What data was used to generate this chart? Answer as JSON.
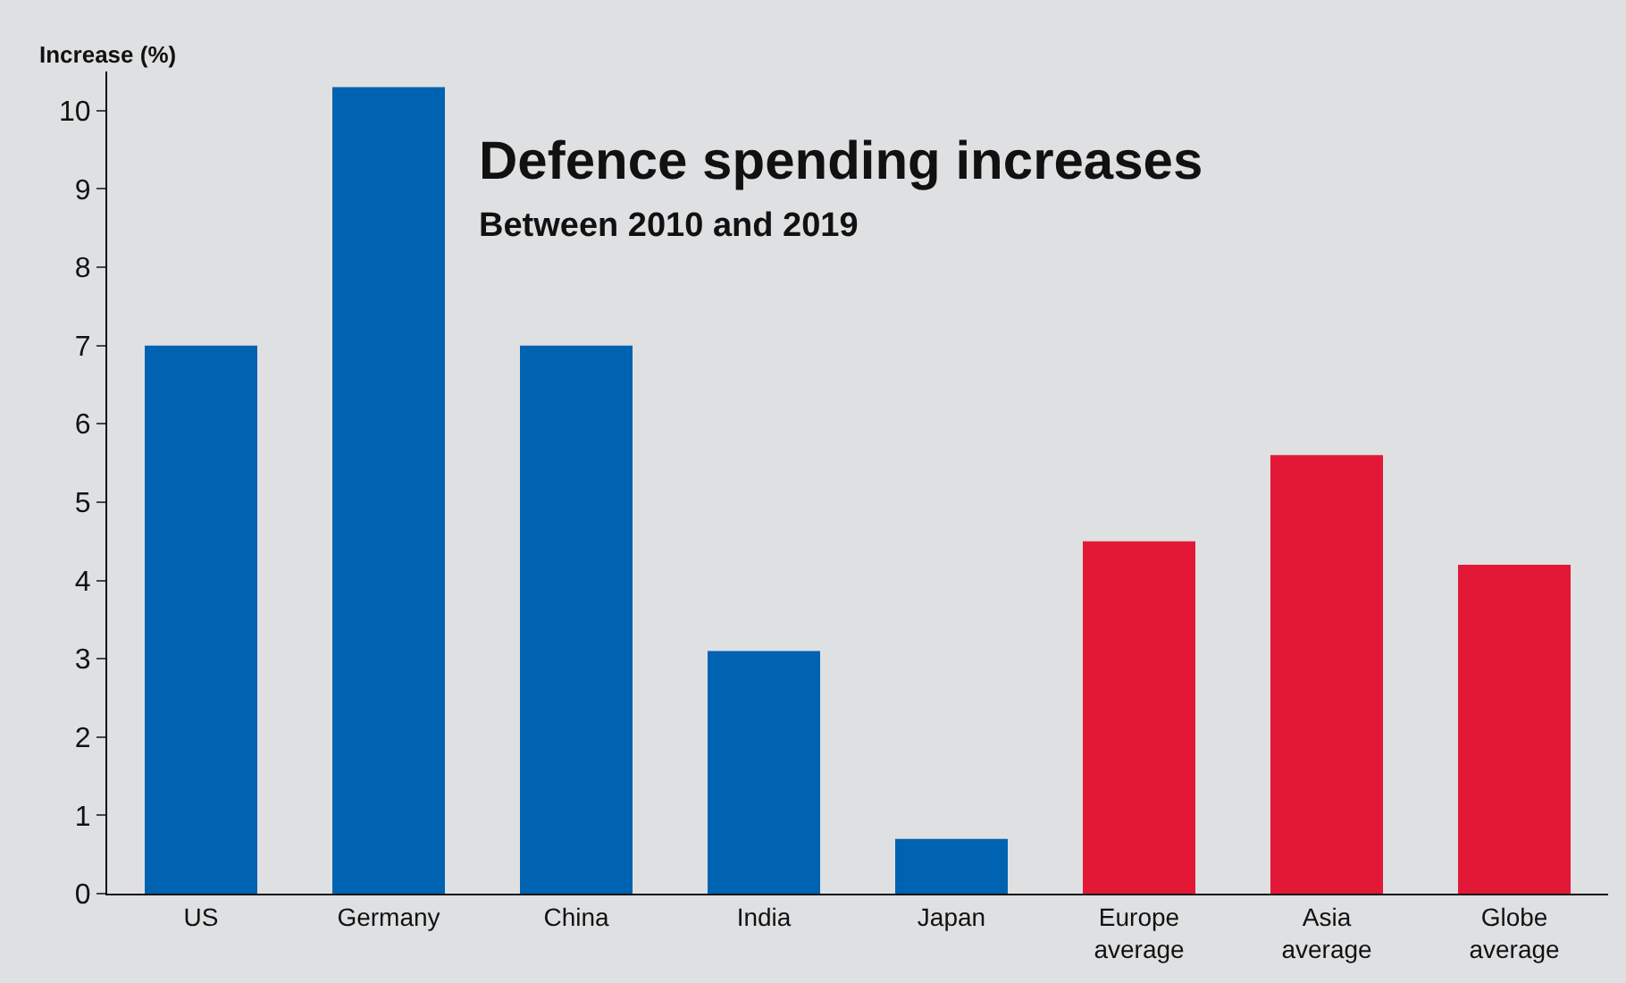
{
  "chart_data": {
    "type": "bar",
    "title": "Defence spending increases",
    "subtitle": "Between 2010 and 2019",
    "ylabel": "Increase (%)",
    "categories": [
      "US",
      "Germany",
      "China",
      "India",
      "Japan",
      "Europe\naverage",
      "Asia\naverage",
      "Globe\naverage"
    ],
    "values": [
      7.0,
      10.3,
      7.0,
      3.1,
      0.7,
      4.5,
      5.6,
      4.2
    ],
    "colors": [
      "#0063b1",
      "#0063b1",
      "#0063b1",
      "#0063b1",
      "#0063b1",
      "#e31837",
      "#e31837",
      "#e31837"
    ],
    "ylim": [
      0,
      10.5
    ],
    "yticks": [
      0,
      1,
      2,
      3,
      4,
      5,
      6,
      7,
      8,
      9,
      10
    ],
    "grid": false,
    "legend": false
  }
}
